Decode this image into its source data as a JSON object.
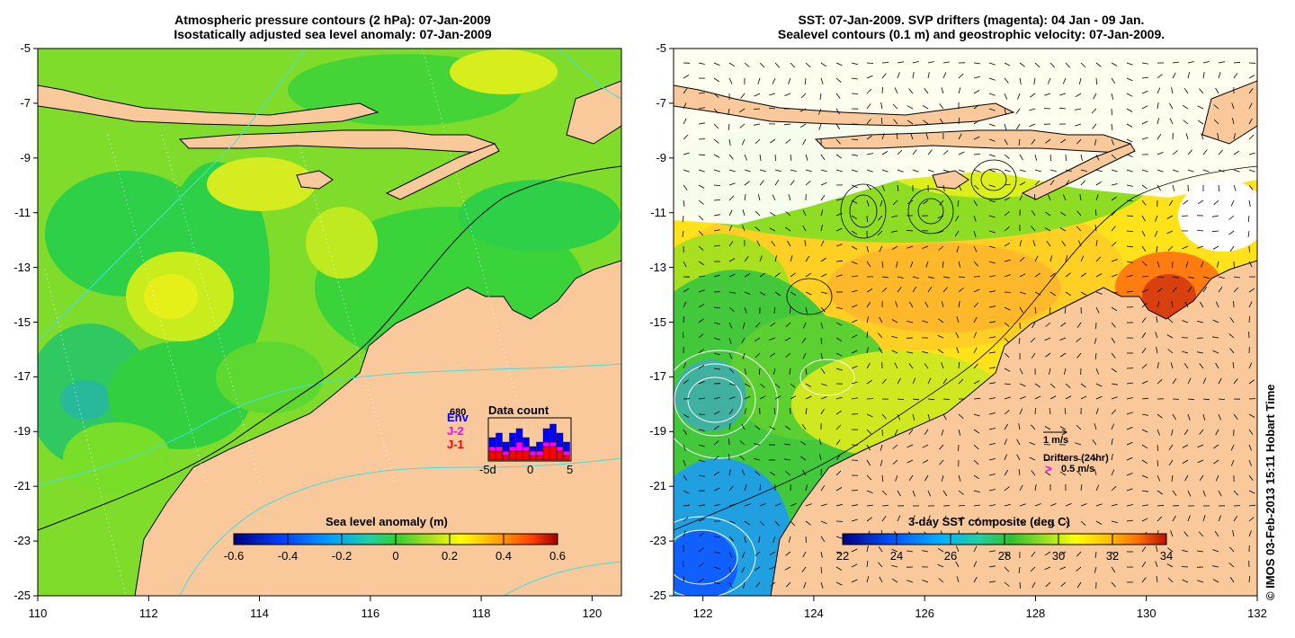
{
  "left_panel": {
    "title_line1": "Atmospheric pressure contours (2 hPa): 07-Jan-2009",
    "title_line2": "Isostatically adjusted sea level anomaly: 07-Jan-2009",
    "colorbar": {
      "title": "Sea level anomaly (m)",
      "ticks": [
        "-0.6",
        "-0.4",
        "-0.2",
        "0",
        "0.2",
        "0.4",
        "0.6"
      ]
    },
    "data_count": {
      "title": "Data count",
      "legend": [
        {
          "label": "Env",
          "color": "#0000ff"
        },
        {
          "label": "J-2",
          "color": "#ff00ff"
        },
        {
          "label": "J-1",
          "color": "#ff0000"
        }
      ],
      "max_label": "680",
      "x_ticks": [
        "-5d",
        "0",
        "5"
      ],
      "bars": [
        {
          "env": 5,
          "j2": 3,
          "j1": 2
        },
        {
          "env": 6,
          "j2": 3,
          "j1": 2
        },
        {
          "env": 4,
          "j2": 2,
          "j1": 1
        },
        {
          "env": 6,
          "j2": 3,
          "j1": 2
        },
        {
          "env": 7,
          "j2": 4,
          "j1": 2
        },
        {
          "env": 5,
          "j2": 3,
          "j1": 2
        },
        {
          "env": 3,
          "j2": 2,
          "j1": 1
        },
        {
          "env": 4,
          "j2": 2,
          "j1": 1
        },
        {
          "env": 7,
          "j2": 4,
          "j1": 3
        },
        {
          "env": 8,
          "j2": 4,
          "j1": 3
        },
        {
          "env": 6,
          "j2": 3,
          "j1": 2
        },
        {
          "env": 4,
          "j2": 2,
          "j1": 1
        }
      ]
    }
  },
  "right_panel": {
    "title_line1": "SST: 07-Jan-2009. SVP drifters (magenta): 04 Jan - 09 Jan.",
    "title_line2": "Sealevel contours (0.1 m) and geostrophic velocity: 07-Jan-2009.",
    "colorbar": {
      "title": "3-day SST composite (deg C)",
      "ticks": [
        "22",
        "24",
        "26",
        "28",
        "30",
        "32",
        "34"
      ]
    },
    "velocity_legend": "1 m/s",
    "drifter_legend_title": "Drifters (24hr)",
    "drifter_legend_value": "0.5 m/s",
    "drifter_symbol": ">"
  },
  "axes": {
    "lon_ticks": [
      "110",
      "112",
      "114",
      "116",
      "118",
      "120",
      "122",
      "124",
      "126",
      "128",
      "130",
      "132"
    ],
    "lat_ticks": [
      "-5",
      "-7",
      "-9",
      "-11",
      "-13",
      "-15",
      "-17",
      "-19",
      "-21",
      "-23",
      "-25"
    ]
  },
  "credit": "© IMOS 03-Feb-2013 15:11 Hobart Time",
  "colors": {
    "land": "#f9c89b",
    "sla_colormap": [
      "#00007f",
      "#0040ff",
      "#00a0ff",
      "#20d0a0",
      "#30d030",
      "#a0e020",
      "#ffff00",
      "#ffa000",
      "#ff4000",
      "#a00000"
    ],
    "sst_colormap": [
      "#00007f",
      "#0050ff",
      "#00b0ff",
      "#20d0a0",
      "#30c030",
      "#90e020",
      "#ffff00",
      "#ffc000",
      "#ff7000",
      "#c01000"
    ]
  }
}
